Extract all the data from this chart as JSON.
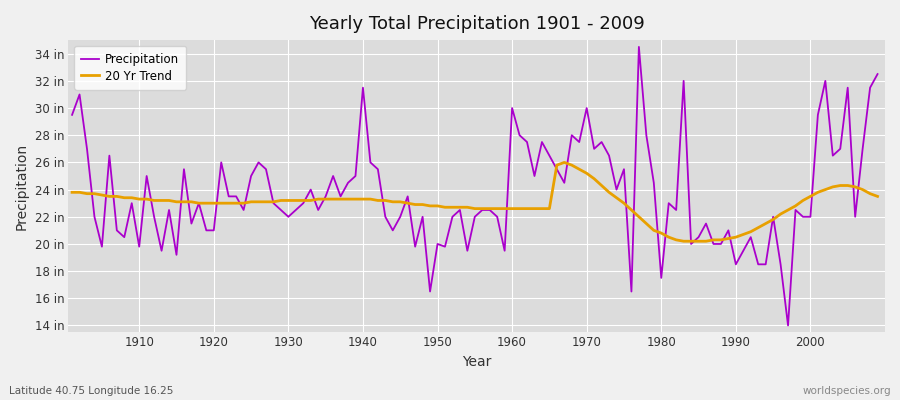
{
  "title": "Yearly Total Precipitation 1901 - 2009",
  "xlabel": "Year",
  "ylabel": "Precipitation",
  "bg_color": "#f0f0f0",
  "plot_bg_color": "#dcdcdc",
  "precip_color": "#aa00cc",
  "trend_color": "#e8a000",
  "precip_label": "Precipitation",
  "trend_label": "20 Yr Trend",
  "ylim": [
    13.5,
    35.0
  ],
  "yticks": [
    14,
    16,
    18,
    20,
    22,
    24,
    26,
    28,
    30,
    32,
    34
  ],
  "xticks": [
    1910,
    1920,
    1930,
    1940,
    1950,
    1960,
    1970,
    1980,
    1990,
    2000
  ],
  "xlim": [
    1900.5,
    2010
  ],
  "footer_left": "Latitude 40.75 Longitude 16.25",
  "footer_right": "worldspecies.org",
  "years": [
    1901,
    1902,
    1903,
    1904,
    1905,
    1906,
    1907,
    1908,
    1909,
    1910,
    1911,
    1912,
    1913,
    1914,
    1915,
    1916,
    1917,
    1918,
    1919,
    1920,
    1921,
    1922,
    1923,
    1924,
    1925,
    1926,
    1927,
    1928,
    1929,
    1930,
    1931,
    1932,
    1933,
    1934,
    1935,
    1936,
    1937,
    1938,
    1939,
    1940,
    1941,
    1942,
    1943,
    1944,
    1945,
    1946,
    1947,
    1948,
    1949,
    1950,
    1951,
    1952,
    1953,
    1954,
    1955,
    1956,
    1957,
    1958,
    1959,
    1960,
    1961,
    1962,
    1963,
    1964,
    1965,
    1966,
    1967,
    1968,
    1969,
    1970,
    1971,
    1972,
    1973,
    1974,
    1975,
    1976,
    1977,
    1978,
    1979,
    1980,
    1981,
    1982,
    1983,
    1984,
    1985,
    1986,
    1987,
    1988,
    1989,
    1990,
    1991,
    1992,
    1993,
    1994,
    1995,
    1996,
    1997,
    1998,
    1999,
    2000,
    2001,
    2002,
    2003,
    2004,
    2005,
    2006,
    2007,
    2008,
    2009
  ],
  "precip": [
    29.5,
    31.0,
    27.0,
    22.0,
    19.8,
    26.5,
    21.0,
    20.5,
    23.0,
    19.8,
    25.0,
    22.0,
    19.5,
    22.5,
    19.2,
    25.5,
    21.5,
    23.0,
    21.0,
    21.0,
    26.0,
    23.5,
    23.5,
    22.5,
    25.0,
    26.0,
    25.5,
    23.0,
    22.5,
    22.0,
    22.5,
    23.0,
    24.0,
    22.5,
    23.5,
    25.0,
    23.5,
    24.5,
    25.0,
    31.5,
    26.0,
    25.5,
    22.0,
    21.0,
    22.0,
    23.5,
    19.8,
    22.0,
    16.5,
    20.0,
    19.8,
    22.0,
    22.5,
    19.5,
    22.0,
    22.5,
    22.5,
    22.0,
    19.5,
    30.0,
    28.0,
    27.5,
    25.0,
    27.5,
    26.5,
    25.5,
    24.5,
    28.0,
    27.5,
    30.0,
    27.0,
    27.5,
    26.5,
    24.0,
    25.5,
    16.5,
    34.5,
    28.0,
    24.5,
    17.5,
    23.0,
    22.5,
    32.0,
    20.0,
    20.5,
    21.5,
    20.0,
    20.0,
    21.0,
    18.5,
    19.5,
    20.5,
    18.5,
    18.5,
    22.0,
    18.5,
    14.0,
    22.5,
    22.0,
    22.0,
    29.5,
    32.0,
    26.5,
    27.0,
    31.5,
    22.0,
    27.0,
    31.5,
    32.5
  ],
  "trend": [
    23.8,
    23.8,
    23.7,
    23.7,
    23.6,
    23.5,
    23.5,
    23.4,
    23.4,
    23.3,
    23.3,
    23.2,
    23.2,
    23.2,
    23.1,
    23.1,
    23.1,
    23.0,
    23.0,
    23.0,
    23.0,
    23.0,
    23.0,
    23.0,
    23.1,
    23.1,
    23.1,
    23.1,
    23.2,
    23.2,
    23.2,
    23.2,
    23.2,
    23.3,
    23.3,
    23.3,
    23.3,
    23.3,
    23.3,
    23.3,
    23.3,
    23.2,
    23.2,
    23.1,
    23.1,
    23.0,
    22.9,
    22.9,
    22.8,
    22.8,
    22.7,
    22.7,
    22.7,
    22.7,
    22.6,
    22.6,
    22.6,
    22.6,
    22.6,
    22.6,
    22.6,
    22.6,
    22.6,
    22.6,
    22.6,
    25.8,
    26.0,
    25.8,
    25.5,
    25.2,
    24.8,
    24.3,
    23.8,
    23.4,
    23.0,
    22.5,
    22.0,
    21.5,
    21.0,
    20.8,
    20.5,
    20.3,
    20.2,
    20.2,
    20.2,
    20.2,
    20.3,
    20.3,
    20.4,
    20.5,
    20.7,
    20.9,
    21.2,
    21.5,
    21.8,
    22.2,
    22.5,
    22.8,
    23.2,
    23.5,
    23.8,
    24.0,
    24.2,
    24.3,
    24.3,
    24.2,
    24.0,
    23.7,
    23.5
  ]
}
